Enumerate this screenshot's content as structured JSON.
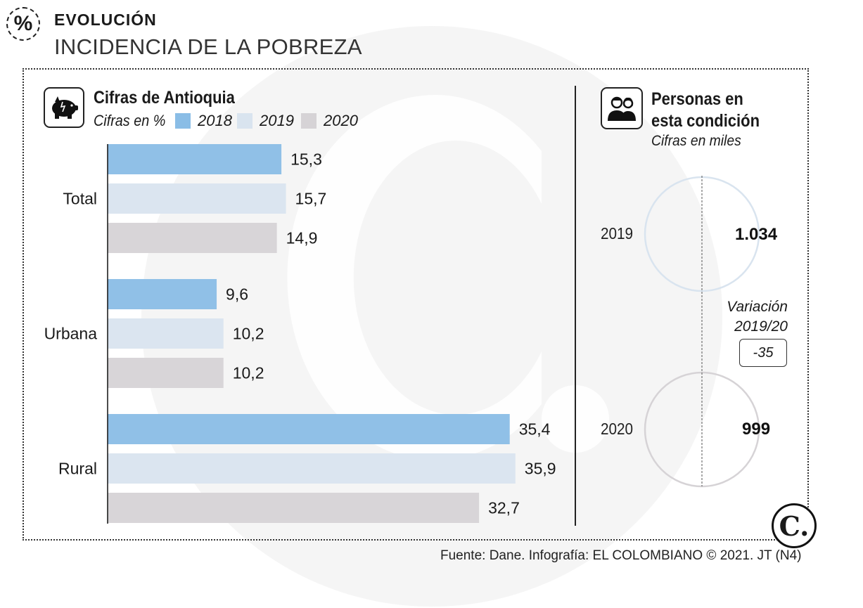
{
  "header": {
    "icon_symbol": "%",
    "kicker": "EVOLUCIÓN",
    "title": "INCIDENCIA DE LA POBREZA"
  },
  "left_panel": {
    "icon": "piggy-bank-icon",
    "heading": "Cifras de Antioquia",
    "subtitle": "Cifras en %",
    "legend": [
      {
        "label": "2018",
        "color": "#8abde6"
      },
      {
        "label": "2019",
        "color": "#d9e4ef"
      },
      {
        "label": "2020",
        "color": "#d6d3d6"
      }
    ]
  },
  "chart_data": {
    "type": "bar",
    "orientation": "horizontal",
    "title": "Cifras de Antioquia",
    "subtitle": "Cifras en %",
    "categories": [
      "Total",
      "Urbana",
      "Rural"
    ],
    "series": [
      {
        "name": "2018",
        "values": [
          15.3,
          9.6,
          35.4
        ],
        "labels": [
          "15,3",
          "9,6",
          "35,4"
        ]
      },
      {
        "name": "2019",
        "values": [
          15.7,
          10.2,
          35.9
        ],
        "labels": [
          "15,7",
          "10,2",
          "35,9"
        ]
      },
      {
        "name": "2020",
        "values": [
          14.9,
          10.2,
          32.7
        ],
        "labels": [
          "14,9",
          "10,2",
          "32,7"
        ]
      }
    ],
    "xlim": [
      0,
      40
    ],
    "grid": false,
    "legend": "top"
  },
  "right_panel": {
    "icon": "people-icon",
    "heading_line1": "Personas en",
    "heading_line2": "esta condición",
    "subtitle": "Cifras en miles",
    "rows": [
      {
        "year": "2019",
        "value": "1.034",
        "circle_color": "#d9e4ef"
      },
      {
        "year": "2020",
        "value": "999",
        "circle_color": "#d6d3d6"
      }
    ],
    "variation_line1": "Variación",
    "variation_line2": "2019/20",
    "variation_value": "-35"
  },
  "logo": {
    "text": "C."
  },
  "footer": {
    "source": "Fuente: Dane. Infografía: EL COLOMBIANO © 2021. JT (N4)"
  }
}
